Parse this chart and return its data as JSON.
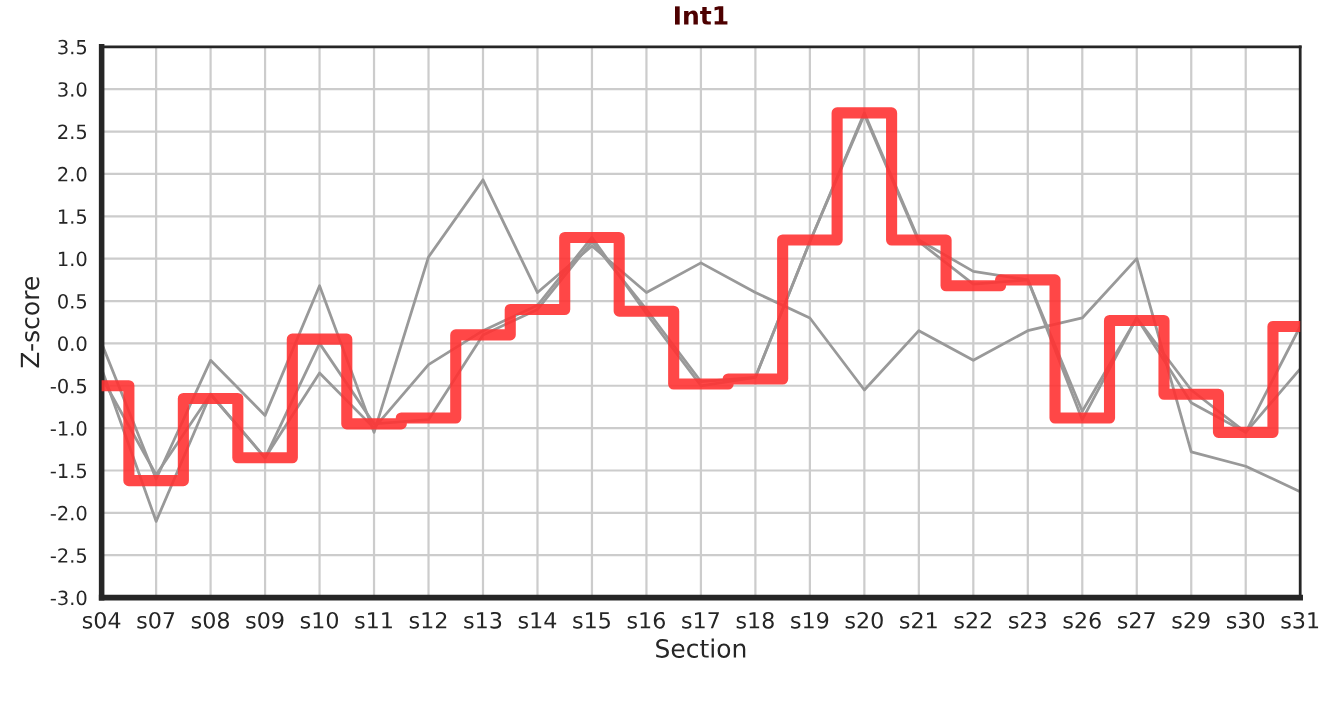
{
  "chart_data": {
    "type": "line",
    "title": "Int1",
    "xlabel": "Section",
    "ylabel": "Z-score",
    "categories": [
      "s04",
      "s07",
      "s08",
      "s09",
      "s10",
      "s11",
      "s12",
      "s13",
      "s14",
      "s15",
      "s16",
      "s17",
      "s18",
      "s19",
      "s20",
      "s21",
      "s22",
      "s23",
      "s26",
      "s27",
      "s29",
      "s30",
      "s31"
    ],
    "series": [
      {
        "color": "#999999",
        "values": [
          0.0,
          -1.6,
          -0.2,
          -0.85,
          0.68,
          -1.05,
          1.02,
          1.93,
          0.6,
          1.15,
          0.6,
          0.95,
          0.6,
          0.3,
          -0.55,
          0.15,
          -0.2,
          0.15,
          0.3,
          1.0,
          -1.28,
          -1.45,
          -1.75
        ]
      },
      {
        "color": "#999999",
        "values": [
          -0.3,
          -2.1,
          -0.6,
          -1.35,
          -0.35,
          -1.0,
          -0.25,
          0.15,
          0.45,
          1.25,
          0.35,
          -0.5,
          -0.4,
          1.2,
          2.72,
          1.22,
          0.85,
          0.75,
          -0.8,
          0.3,
          -0.7,
          -1.05,
          0.2
        ]
      },
      {
        "color": "#999999",
        "values": [
          -0.4,
          -1.55,
          -0.6,
          -1.35,
          0.0,
          -0.95,
          -0.9,
          0.1,
          0.4,
          1.2,
          0.4,
          -0.45,
          -0.4,
          1.2,
          2.7,
          1.2,
          0.7,
          0.75,
          -0.9,
          0.3,
          -0.55,
          -1.05,
          -0.3
        ]
      },
      {
        "type": "step",
        "color": "#ff3333",
        "values": [
          -0.5,
          -1.62,
          -0.65,
          -1.35,
          0.05,
          -0.95,
          -0.88,
          0.1,
          0.4,
          1.25,
          0.38,
          -0.48,
          -0.42,
          1.22,
          2.72,
          1.22,
          0.68,
          0.75,
          -0.88,
          0.27,
          -0.6,
          -1.05,
          0.2
        ]
      }
    ],
    "ylim": [
      -3.0,
      3.5
    ],
    "yticks": [
      {
        "value": -3.0,
        "label": "-3.0"
      },
      {
        "value": -2.5,
        "label": "-2.5"
      },
      {
        "value": -2.0,
        "label": "-2.0"
      },
      {
        "value": -1.5,
        "label": "-1.5"
      },
      {
        "value": -1.0,
        "label": "-1.0"
      },
      {
        "value": -0.5,
        "label": "-0.5"
      },
      {
        "value": 0.0,
        "label": "0.0"
      },
      {
        "value": 0.5,
        "label": "0.5"
      },
      {
        "value": 1.0,
        "label": "1.0"
      },
      {
        "value": 1.5,
        "label": "1.5"
      },
      {
        "value": 2.0,
        "label": "2.0"
      },
      {
        "value": 2.5,
        "label": "2.5"
      },
      {
        "value": 3.0,
        "label": "3.0"
      },
      {
        "value": 3.5,
        "label": "3.5"
      }
    ],
    "grid": true,
    "legend": false
  }
}
